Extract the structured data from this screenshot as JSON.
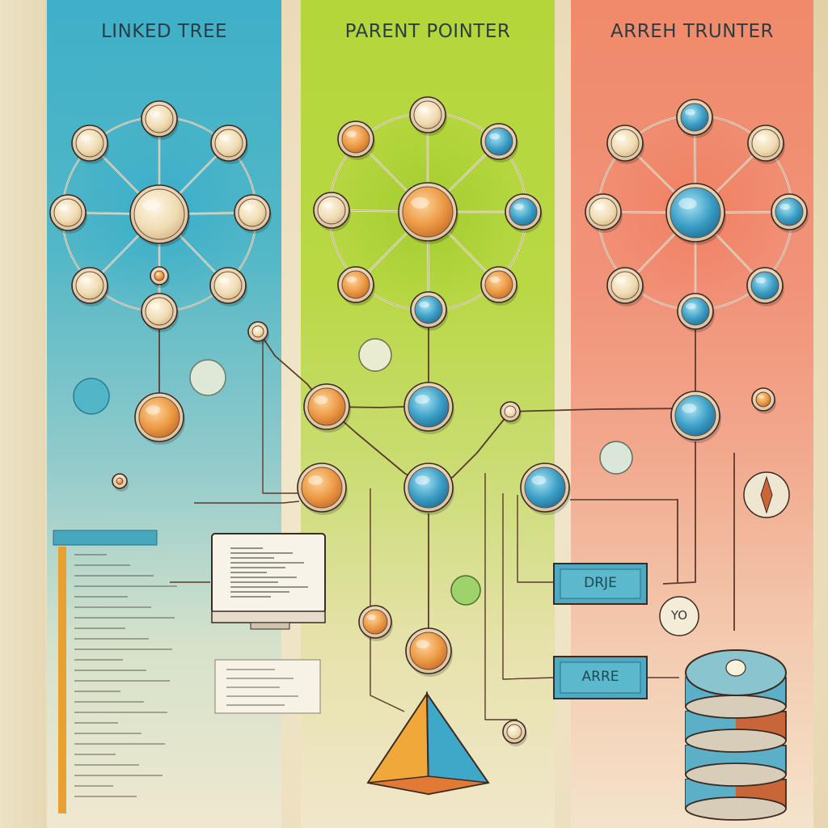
{
  "panels": [
    {
      "title": "LINKED TREE",
      "accent": "#3fb0c9"
    },
    {
      "title": "PARENT POINTER",
      "accent": "#b4d63a"
    },
    {
      "title": "ARREH TRUNTER",
      "accent": "#f08a6a"
    }
  ],
  "boxes": {
    "upper": "DRJE",
    "lower": "ARRE"
  },
  "badge": "YO",
  "colors": {
    "cream": "#efdcb4",
    "orange": "#e9913a",
    "blue": "#3b9dc4",
    "line": "#5a3a2c",
    "frame": "#3d2a22"
  }
}
